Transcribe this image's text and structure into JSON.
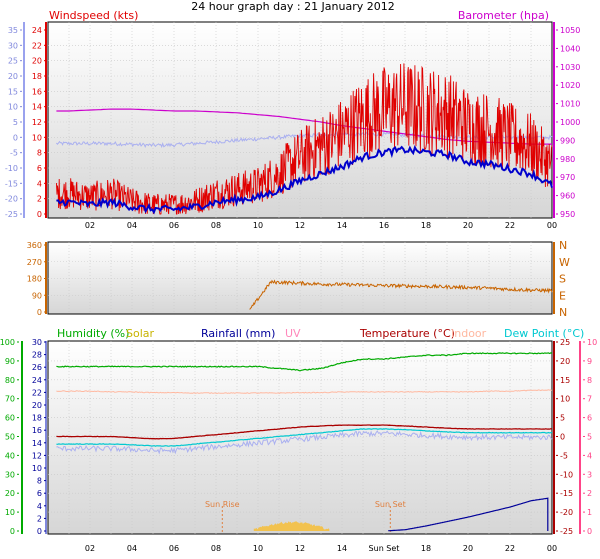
{
  "title": "24 hour graph day : 21 January 2012",
  "colors": {
    "windspeed": "#e00000",
    "windgust": "#0000cc",
    "barometer": "#cc00cc",
    "tempaxis": "#9aa2ee",
    "tempfaint": "#aab0f0",
    "direction": "#c86400",
    "humidity": "#00aa00",
    "solar": "#c8b400",
    "solar_fill": "#f5c040",
    "rainfall": "#000099",
    "uv": "#ff88bb",
    "temperature": "#aa0000",
    "indoor": "#ffb8a0",
    "dewpoint": "#00c8d0",
    "dew_right_axis": "#ff4488",
    "sun": "#e08040",
    "grid": "#c8c8c8",
    "plot_bg_top": "#ffffff",
    "plot_bg_bottom": "#d8d8d8"
  },
  "x_ticks": [
    "02",
    "04",
    "06",
    "08",
    "10",
    "12",
    "14",
    "16",
    "18",
    "20",
    "22",
    "00"
  ],
  "x_ticks_bottom": [
    "02",
    "04",
    "06",
    "08",
    "10",
    "12",
    "14",
    "Sun Set",
    "18",
    "20",
    "22",
    "00"
  ],
  "panel1": {
    "left_title": "Windspeed (kts)",
    "right_title": "Barometer (hpa)",
    "outer_left_ticks": [
      "35",
      "30",
      "25",
      "20",
      "15",
      "10",
      "5",
      "0",
      "-5",
      "-10",
      "-15",
      "-20",
      "-25"
    ],
    "left_ticks": [
      "24",
      "22",
      "20",
      "18",
      "16",
      "14",
      "12",
      "10",
      "8",
      "6",
      "4",
      "2",
      "0"
    ],
    "right_ticks": [
      "1050",
      "1040",
      "1030",
      "1020",
      "1010",
      "1000",
      "990",
      "980",
      "970",
      "960",
      "950"
    ]
  },
  "panel2": {
    "left_ticks": [
      "360",
      "270",
      "180",
      "90",
      "0"
    ],
    "right_labels": [
      "N",
      "W",
      "S",
      "E",
      "N"
    ]
  },
  "panel3": {
    "legend": {
      "humidity": "Humidity (%)",
      "solar": "Solar",
      "rainfall": "Rainfall (mm)",
      "uv": "UV",
      "temperature": "Temperature (°C)",
      "indoor": "Indoor",
      "dewpoint": "Dew Point (°C)"
    },
    "humidity_ticks": [
      "100",
      "90",
      "80",
      "70",
      "60",
      "50",
      "40",
      "30",
      "20",
      "10",
      "0"
    ],
    "solar_ticks": [
      "30",
      "28",
      "26",
      "24",
      "22",
      "20",
      "18",
      "16",
      "14",
      "12",
      "10",
      "8",
      "6",
      "4",
      "2",
      "0"
    ],
    "temp_ticks": [
      "25",
      "20",
      "15",
      "10",
      "5",
      "0",
      "-5",
      "-10",
      "-15",
      "-20",
      "-25"
    ],
    "uv_ticks": [
      "10",
      "9",
      "8",
      "7",
      "6",
      "5",
      "4",
      "3",
      "2",
      "1",
      "0"
    ],
    "sunrise_label": "Sun Rise",
    "sunset_label": "Sun Set"
  },
  "chart_data": [
    {
      "type": "line",
      "title": "24 hour graph day : 21 January 2012",
      "xlabel": "",
      "x": [
        "01",
        "02",
        "03",
        "04",
        "05",
        "06",
        "07",
        "08",
        "09",
        "10",
        "11",
        "12",
        "13",
        "14",
        "15",
        "16",
        "17",
        "18",
        "19",
        "20",
        "21",
        "22",
        "23",
        "00"
      ],
      "series": [
        {
          "name": "Windspeed (kts)",
          "axis": "left",
          "values": [
            2.5,
            2.0,
            2.5,
            1.5,
            1.0,
            1.0,
            1.5,
            2.5,
            3.0,
            3.5,
            5.0,
            7.0,
            8.5,
            10.0,
            12.0,
            13.0,
            13.5,
            13.0,
            12.5,
            11.0,
            10.5,
            9.5,
            8.5,
            6.0
          ]
        },
        {
          "name": "Barometer (hpa)",
          "axis": "right",
          "values": [
            1006,
            1006.5,
            1007,
            1007,
            1006.5,
            1006,
            1006,
            1005.5,
            1005,
            1004,
            1003,
            1001.5,
            1000,
            998,
            996.5,
            995,
            993.5,
            992,
            990.5,
            989.5,
            989,
            988.5,
            988,
            988
          ]
        }
      ],
      "left_ylim": [
        0,
        25
      ],
      "right_ylim": [
        950,
        1050
      ]
    },
    {
      "type": "scatter",
      "title": "",
      "x": [
        "01",
        "02",
        "03",
        "04",
        "05",
        "06",
        "07",
        "08",
        "09",
        "10",
        "11",
        "12",
        "13",
        "14",
        "15",
        "16",
        "17",
        "18",
        "19",
        "20",
        "21",
        "22",
        "23",
        "00"
      ],
      "series": [
        {
          "name": "Wind direction",
          "values": [
            null,
            null,
            null,
            null,
            null,
            null,
            null,
            null,
            null,
            null,
            160,
            155,
            150,
            148,
            145,
            142,
            140,
            138,
            135,
            132,
            128,
            122,
            118,
            115
          ]
        }
      ],
      "ylim": [
        0,
        360
      ]
    },
    {
      "type": "line",
      "title": "",
      "x": [
        "01",
        "02",
        "03",
        "04",
        "05",
        "06",
        "07",
        "08",
        "09",
        "10",
        "11",
        "12",
        "13",
        "14",
        "15",
        "16",
        "17",
        "18",
        "19",
        "20",
        "21",
        "22",
        "23",
        "00"
      ],
      "series": [
        {
          "name": "Humidity (%)",
          "axis": "humidity",
          "values": [
            87,
            87,
            87,
            87,
            87,
            87,
            87,
            87,
            87,
            87,
            86,
            85,
            86,
            89,
            91,
            91,
            92,
            93,
            93,
            94,
            94,
            94,
            94,
            94
          ]
        },
        {
          "name": "Temperature (°C)",
          "axis": "temperature",
          "values": [
            0,
            0,
            0,
            -0.3,
            -0.6,
            -0.5,
            0,
            0.5,
            1,
            1.5,
            2,
            2.5,
            2.8,
            3,
            3,
            3,
            2.8,
            2.5,
            2.2,
            2,
            2,
            2,
            2,
            2
          ]
        },
        {
          "name": "Dew Point (°C)",
          "axis": "temperature",
          "values": [
            -2,
            -2,
            -2,
            -2.2,
            -2.5,
            -2.5,
            -2,
            -1.5,
            -1,
            -0.5,
            0,
            0.5,
            1,
            1.5,
            2,
            2,
            1.8,
            1.5,
            1.2,
            1,
            1,
            1,
            1,
            1
          ]
        },
        {
          "name": "Indoor",
          "axis": "temperature",
          "values": [
            12,
            12,
            11.8,
            11.8,
            11.6,
            11.6,
            11.5,
            11.5,
            11.5,
            11.5,
            11.5,
            11.6,
            11.6,
            11.8,
            11.8,
            11.8,
            11.8,
            11.8,
            11.8,
            11.8,
            12,
            12,
            12.2,
            12.3
          ]
        },
        {
          "name": "Rainfall (mm)",
          "axis": "solar",
          "values": [
            0,
            0,
            0,
            0,
            0,
            0,
            0,
            0,
            0,
            0,
            0,
            0,
            0,
            0,
            0,
            0,
            0.2,
            0.8,
            1.5,
            2.2,
            3,
            3.8,
            4.8,
            5.3
          ]
        },
        {
          "name": "Solar",
          "axis": "solar",
          "values": [
            0,
            0,
            0,
            0,
            0,
            0,
            0,
            0,
            0,
            0.4,
            0.7,
            0.8,
            0.6,
            0,
            0,
            0,
            0,
            0,
            0,
            0,
            0,
            0,
            0,
            0
          ]
        }
      ],
      "ylim_humidity": [
        0,
        100
      ],
      "ylim_solar": [
        0,
        30
      ],
      "ylim_temperature": [
        -25,
        25
      ],
      "ylim_uv": [
        0,
        10
      ]
    }
  ]
}
